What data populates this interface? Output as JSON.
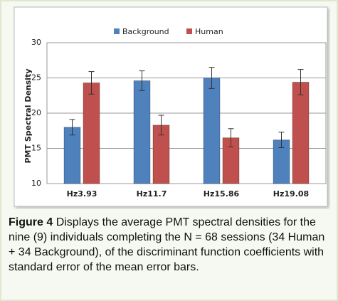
{
  "chart_data": {
    "type": "bar",
    "y_label": "PMT Spectral Density",
    "categories": [
      "Hz3.93",
      "Hz11.7",
      "Hz15.86",
      "Hz19.08"
    ],
    "series": [
      {
        "name": "Background",
        "color": "#4f81bd",
        "values": [
          18.0,
          24.6,
          25.0,
          16.2
        ],
        "errors": [
          1.1,
          1.4,
          1.5,
          1.1
        ]
      },
      {
        "name": "Human",
        "color": "#c0504d",
        "values": [
          24.3,
          18.3,
          16.5,
          24.4
        ],
        "errors": [
          1.6,
          1.4,
          1.3,
          1.8
        ]
      }
    ],
    "ylim": [
      10,
      30
    ],
    "yticks": [
      10,
      15,
      20,
      25,
      30
    ],
    "grid": true,
    "legend": "top"
  },
  "caption": {
    "label": "Figure 4",
    "text": "Displays the average PMT spectral densities for the nine (9) individuals completing the N = 68 sessions (34 Human + 34 Background), of the discriminant function coefficients with standard error of the mean error bars."
  }
}
